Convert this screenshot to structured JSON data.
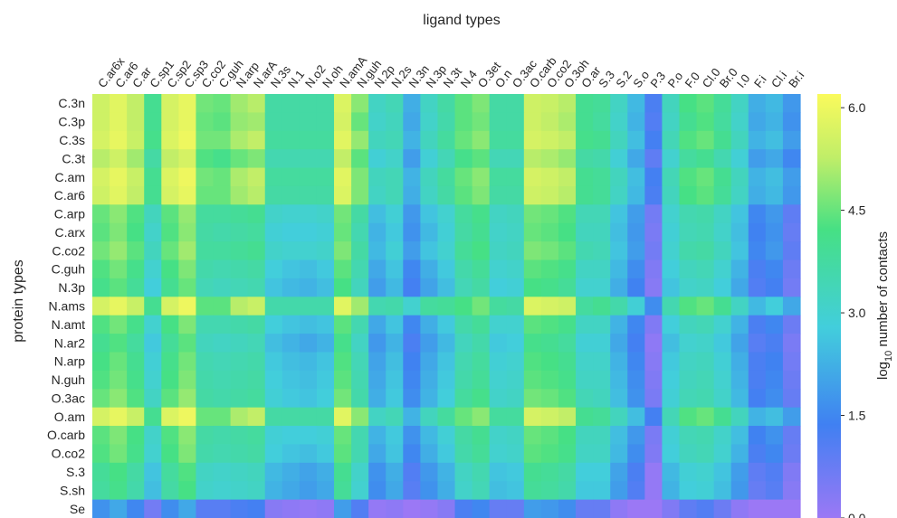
{
  "chart_data": {
    "type": "heatmap",
    "title": "ligand types",
    "ylabel": "protein types",
    "colorbar": {
      "label": "log10 number of contacts",
      "label_base": "log",
      "label_sub": "10",
      "label_rest": "number of contacts",
      "range": [
        0.0,
        6.2
      ],
      "ticks": [
        "0.0",
        "1.5",
        "3.0",
        "4.5",
        "6.0"
      ],
      "tick_values": [
        0.0,
        1.5,
        3.0,
        4.5,
        6.0
      ],
      "colormap": "blue-green-yellow"
    },
    "columns": [
      "C.ar6x",
      "C.ar6",
      "C.ar",
      "C.sp1",
      "C.sp2",
      "C.sp3",
      "C.co2",
      "C.guh",
      "N.arp",
      "N.arA",
      "N.3s",
      "N.1",
      "N.o2",
      "N.oh",
      "N.amA",
      "N.guh",
      "N.2p",
      "N.2s",
      "N.3n",
      "N.3p",
      "N.3t",
      "N.4",
      "O.3et",
      "O.n",
      "O.3ac",
      "O.carb",
      "O.co2",
      "O.3oh",
      "O.ar",
      "S.3",
      "S.2",
      "S.o",
      "P.3",
      "P.o",
      "F.0",
      "Cl.0",
      "Br.0",
      "I.0",
      "F.i",
      "Cl.i",
      "Br.i"
    ],
    "rows": [
      "C.3n",
      "C.3p",
      "C.3s",
      "C.3t",
      "C.am",
      "C.ar6",
      "C.arp",
      "C.arx",
      "C.co2",
      "C.guh",
      "N.3p",
      "N.ams",
      "N.amt",
      "N.ar2",
      "N.arp",
      "N.guh",
      "O.3ac",
      "O.am",
      "O.carb",
      "O.co2",
      "S.3",
      "S.sh",
      "Se"
    ],
    "values": [
      [
        5.5,
        5.8,
        5.3,
        4.0,
        5.6,
        5.9,
        4.6,
        4.5,
        5.0,
        5.2,
        3.7,
        3.7,
        3.7,
        3.7,
        5.7,
        4.8,
        3.2,
        3.4,
        2.2,
        3.2,
        3.7,
        4.4,
        4.7,
        3.7,
        3.7,
        5.5,
        5.4,
        5.2,
        4.0,
        3.9,
        3.2,
        2.4,
        1.2,
        3.3,
        4.2,
        4.4,
        3.9,
        3.2,
        2.2,
        2.4,
        1.8
      ],
      [
        5.5,
        5.8,
        5.3,
        4.0,
        5.6,
        5.9,
        4.5,
        4.4,
        4.9,
        5.0,
        3.7,
        3.7,
        3.7,
        3.7,
        5.6,
        4.5,
        3.1,
        3.3,
        2.1,
        3.1,
        3.6,
        4.4,
        4.6,
        3.7,
        3.7,
        5.5,
        5.3,
        5.1,
        4.0,
        3.8,
        3.1,
        2.3,
        1.1,
        3.2,
        4.0,
        4.3,
        3.8,
        3.1,
        2.1,
        2.3,
        1.7
      ],
      [
        5.6,
        5.9,
        5.4,
        4.1,
        5.7,
        6.0,
        4.6,
        4.6,
        5.1,
        5.3,
        3.8,
        3.8,
        3.8,
        3.8,
        5.8,
        4.9,
        3.3,
        3.4,
        2.3,
        3.3,
        3.8,
        4.5,
        4.8,
        3.8,
        3.8,
        5.6,
        5.5,
        5.3,
        4.1,
        4.0,
        3.3,
        2.5,
        1.3,
        3.4,
        4.3,
        4.5,
        4.0,
        3.3,
        2.3,
        2.5,
        1.9
      ],
      [
        5.2,
        5.5,
        5.0,
        3.7,
        5.3,
        5.6,
        4.3,
        4.1,
        4.5,
        4.7,
        3.5,
        3.5,
        3.5,
        3.5,
        5.3,
        4.4,
        2.9,
        3.1,
        1.9,
        2.9,
        3.4,
        4.1,
        4.4,
        3.4,
        3.4,
        5.2,
        5.1,
        4.9,
        3.7,
        3.6,
        2.9,
        2.1,
        0.9,
        3.0,
        3.8,
        4.0,
        3.5,
        2.9,
        1.9,
        2.1,
        1.5
      ],
      [
        5.6,
        5.9,
        5.4,
        4.0,
        5.7,
        6.0,
        4.6,
        4.5,
        5.1,
        5.3,
        3.8,
        3.8,
        3.8,
        3.8,
        5.8,
        4.7,
        3.3,
        3.4,
        2.3,
        3.3,
        3.8,
        4.5,
        4.8,
        3.8,
        3.8,
        5.6,
        5.5,
        5.3,
        4.0,
        3.9,
        3.3,
        2.5,
        1.3,
        3.4,
        4.3,
        4.5,
        4.0,
        3.3,
        2.3,
        2.5,
        1.9
      ],
      [
        5.5,
        5.8,
        5.3,
        4.0,
        5.6,
        5.9,
        4.5,
        4.5,
        5.0,
        5.2,
        3.7,
        3.7,
        3.7,
        3.7,
        5.7,
        4.7,
        3.2,
        3.4,
        2.2,
        3.2,
        3.7,
        4.4,
        4.7,
        3.7,
        3.7,
        5.5,
        5.4,
        5.2,
        4.0,
        3.9,
        3.2,
        2.4,
        1.2,
        3.3,
        4.2,
        4.4,
        3.9,
        3.2,
        2.2,
        2.4,
        1.8
      ],
      [
        4.5,
        4.8,
        4.3,
        3.3,
        4.4,
        4.9,
        3.8,
        3.8,
        3.9,
        4.0,
        3.1,
        3.0,
        3.0,
        3.1,
        4.6,
        3.7,
        2.5,
        2.9,
        1.8,
        2.6,
        3.0,
        3.8,
        4.1,
        3.2,
        3.3,
        4.6,
        4.5,
        4.3,
        3.4,
        3.4,
        2.6,
        1.9,
        0.6,
        3.0,
        3.5,
        3.6,
        3.2,
        2.6,
        1.5,
        1.8,
        0.9
      ],
      [
        4.4,
        4.7,
        4.2,
        3.1,
        4.3,
        4.8,
        3.7,
        3.6,
        3.7,
        3.8,
        2.9,
        2.8,
        2.8,
        2.9,
        4.5,
        3.5,
        2.3,
        2.7,
        1.7,
        2.4,
        2.9,
        3.7,
        4.0,
        3.1,
        3.2,
        4.5,
        4.4,
        4.2,
        3.3,
        3.3,
        2.5,
        1.8,
        0.5,
        2.9,
        3.4,
        3.5,
        3.1,
        2.5,
        1.4,
        1.7,
        0.8
      ],
      [
        4.6,
        4.9,
        4.4,
        3.3,
        4.5,
        5.0,
        3.8,
        3.8,
        3.9,
        4.0,
        3.1,
        3.0,
        3.0,
        3.1,
        4.7,
        3.7,
        2.4,
        2.9,
        1.9,
        2.6,
        3.0,
        3.9,
        4.2,
        3.2,
        3.3,
        4.7,
        4.6,
        4.4,
        3.5,
        3.4,
        2.6,
        1.9,
        0.6,
        3.0,
        3.6,
        3.7,
        3.3,
        2.6,
        1.5,
        1.8,
        0.9
      ],
      [
        4.3,
        4.6,
        4.1,
        3.0,
        4.2,
        4.7,
        3.6,
        3.5,
        3.6,
        3.7,
        2.8,
        2.6,
        2.5,
        2.7,
        4.4,
        3.5,
        2.1,
        2.6,
        1.5,
        2.2,
        2.7,
        3.6,
        3.9,
        3.0,
        3.1,
        4.4,
        4.3,
        4.1,
        3.2,
        3.2,
        2.4,
        1.6,
        0.4,
        2.8,
        3.3,
        3.4,
        3.0,
        2.3,
        1.2,
        1.5,
        0.7
      ],
      [
        4.1,
        4.4,
        3.9,
        2.8,
        4.0,
        4.5,
        3.4,
        3.3,
        3.4,
        3.5,
        2.6,
        2.4,
        2.3,
        2.5,
        4.2,
        3.3,
        1.9,
        2.4,
        1.3,
        2.0,
        2.5,
        3.4,
        3.7,
        2.8,
        2.9,
        4.2,
        4.1,
        3.9,
        3.0,
        3.0,
        2.2,
        1.4,
        0.3,
        2.6,
        3.1,
        3.2,
        2.8,
        2.1,
        1.1,
        1.3,
        0.6
      ],
      [
        5.6,
        5.9,
        5.4,
        4.0,
        5.6,
        6.0,
        4.4,
        4.4,
        5.2,
        5.4,
        3.6,
        3.6,
        3.6,
        3.6,
        5.8,
        5.0,
        3.5,
        3.6,
        3.0,
        3.8,
        3.9,
        4.2,
        4.6,
        3.8,
        3.7,
        5.7,
        5.6,
        5.5,
        3.8,
        4.0,
        3.6,
        2.9,
        1.6,
        3.5,
        4.3,
        4.5,
        4.0,
        3.2,
        2.4,
        2.8,
        2.1
      ],
      [
        4.3,
        4.6,
        4.1,
        3.0,
        4.2,
        4.7,
        3.5,
        3.5,
        3.6,
        3.7,
        2.8,
        2.6,
        2.5,
        2.6,
        4.4,
        3.5,
        2.1,
        2.6,
        1.5,
        2.2,
        2.7,
        3.6,
        3.9,
        3.0,
        3.0,
        4.4,
        4.3,
        4.1,
        3.2,
        3.2,
        2.3,
        1.5,
        0.4,
        2.8,
        3.3,
        3.4,
        3.0,
        2.3,
        1.2,
        1.5,
        0.7
      ],
      [
        4.0,
        4.3,
        3.8,
        2.7,
        3.9,
        4.4,
        3.3,
        3.2,
        3.3,
        3.4,
        2.5,
        2.3,
        2.1,
        2.3,
        4.1,
        3.2,
        1.8,
        2.3,
        1.2,
        1.9,
        2.4,
        3.3,
        3.6,
        2.7,
        2.8,
        4.1,
        4.0,
        3.8,
        2.9,
        2.9,
        2.1,
        1.3,
        0.2,
        2.5,
        3.0,
        3.1,
        2.7,
        2.0,
        1.0,
        1.2,
        0.5
      ],
      [
        4.2,
        4.5,
        4.0,
        2.9,
        4.1,
        4.6,
        3.5,
        3.4,
        3.5,
        3.6,
        2.7,
        2.5,
        2.4,
        2.6,
        4.3,
        3.4,
        2.0,
        2.5,
        1.4,
        2.1,
        2.6,
        3.5,
        3.8,
        2.9,
        3.0,
        4.3,
        4.2,
        4.0,
        3.1,
        3.1,
        2.3,
        1.5,
        0.3,
        2.7,
        3.2,
        3.3,
        2.9,
        2.2,
        1.2,
        1.4,
        0.6
      ],
      [
        4.3,
        4.6,
        4.1,
        3.0,
        4.2,
        4.7,
        3.6,
        3.5,
        3.6,
        3.7,
        2.8,
        2.6,
        2.5,
        2.7,
        4.4,
        3.5,
        2.1,
        2.6,
        1.5,
        2.2,
        2.7,
        3.6,
        3.9,
        3.0,
        3.1,
        4.4,
        4.3,
        4.1,
        3.2,
        3.2,
        2.4,
        1.6,
        0.4,
        2.8,
        3.3,
        3.4,
        3.0,
        2.3,
        1.2,
        1.5,
        0.7
      ],
      [
        4.5,
        4.8,
        4.3,
        3.2,
        4.4,
        4.9,
        3.7,
        3.6,
        3.7,
        3.8,
        2.9,
        2.7,
        2.6,
        2.8,
        4.6,
        3.6,
        2.2,
        2.7,
        1.6,
        2.3,
        2.8,
        3.8,
        4.1,
        3.1,
        3.2,
        4.6,
        4.5,
        4.3,
        3.4,
        3.3,
        2.5,
        1.7,
        0.5,
        2.9,
        3.4,
        3.5,
        3.1,
        2.4,
        1.3,
        1.6,
        0.8
      ],
      [
        5.6,
        5.9,
        5.4,
        4.0,
        5.7,
        6.0,
        4.5,
        4.5,
        5.1,
        5.3,
        3.7,
        3.7,
        3.7,
        3.7,
        5.8,
        4.8,
        3.2,
        3.4,
        2.3,
        3.3,
        3.8,
        4.5,
        4.8,
        3.8,
        3.8,
        5.6,
        5.5,
        5.3,
        4.0,
        3.9,
        3.3,
        2.5,
        1.3,
        3.4,
        4.3,
        4.5,
        4.0,
        3.3,
        2.3,
        2.5,
        1.9
      ],
      [
        4.4,
        4.7,
        4.2,
        3.1,
        4.3,
        4.8,
        3.7,
        3.6,
        3.7,
        3.8,
        2.9,
        2.8,
        2.8,
        2.9,
        4.5,
        3.5,
        2.3,
        2.7,
        1.7,
        2.4,
        2.9,
        3.7,
        4.0,
        3.1,
        3.2,
        4.5,
        4.4,
        4.2,
        3.3,
        3.3,
        2.5,
        1.8,
        0.5,
        2.9,
        3.4,
        3.5,
        3.1,
        2.5,
        1.4,
        1.7,
        0.8
      ],
      [
        4.3,
        4.6,
        4.1,
        3.0,
        4.2,
        4.7,
        3.6,
        3.5,
        3.6,
        3.7,
        2.8,
        2.6,
        2.5,
        2.7,
        4.4,
        3.5,
        2.1,
        2.6,
        1.5,
        2.2,
        2.7,
        3.6,
        3.9,
        3.0,
        3.1,
        4.4,
        4.3,
        4.1,
        3.2,
        3.2,
        2.4,
        1.6,
        0.4,
        2.8,
        3.3,
        3.4,
        3.0,
        2.3,
        1.2,
        1.5,
        0.7
      ],
      [
        3.9,
        4.2,
        3.7,
        2.6,
        3.8,
        4.3,
        3.2,
        3.1,
        3.2,
        3.3,
        2.4,
        2.2,
        2.0,
        2.2,
        4.0,
        3.1,
        1.7,
        2.2,
        1.1,
        1.8,
        2.3,
        3.2,
        3.5,
        2.6,
        2.7,
        4.0,
        3.9,
        3.7,
        2.8,
        2.8,
        2.0,
        1.2,
        0.1,
        2.4,
        2.9,
        3.0,
        2.6,
        1.9,
        0.9,
        1.1,
        0.4
      ],
      [
        3.8,
        4.1,
        3.6,
        2.5,
        3.7,
        4.2,
        3.1,
        3.0,
        3.1,
        3.2,
        2.3,
        2.1,
        1.9,
        2.1,
        3.9,
        3.0,
        1.6,
        2.1,
        1.0,
        1.7,
        2.2,
        3.1,
        3.4,
        2.5,
        2.6,
        3.9,
        3.8,
        3.6,
        2.7,
        2.7,
        1.9,
        1.1,
        0.1,
        2.3,
        2.8,
        2.9,
        2.5,
        1.8,
        0.8,
        1.0,
        0.3
      ],
      [
        1.7,
        2.1,
        1.5,
        0.6,
        1.6,
        2.1,
        1.0,
        1.0,
        1.2,
        1.3,
        0.3,
        0.2,
        0.1,
        0.2,
        1.9,
        1.1,
        0.1,
        0.2,
        0.0,
        0.1,
        0.3,
        1.2,
        1.5,
        0.8,
        0.8,
        1.9,
        1.8,
        1.6,
        0.8,
        0.8,
        0.2,
        0.0,
        0.0,
        0.4,
        0.9,
        1.1,
        0.7,
        0.2,
        0.0,
        0.0,
        0.0
      ]
    ]
  }
}
